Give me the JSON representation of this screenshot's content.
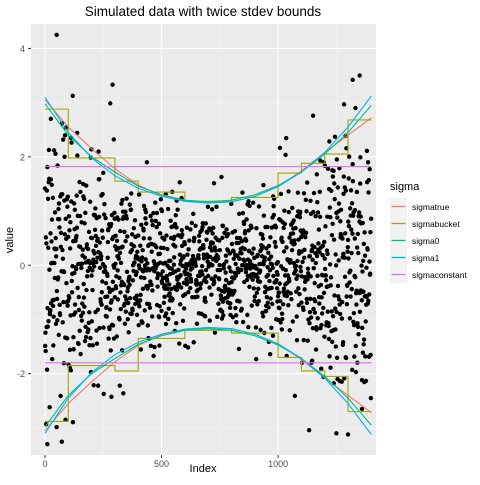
{
  "chart_data": {
    "type": "scatter",
    "title": "Simulated data with twice stdev bounds",
    "xlabel": "Index",
    "ylabel": "value",
    "xlim": [
      -60,
      1420
    ],
    "ylim": [
      -3.5,
      4.45
    ],
    "xticks": [
      0,
      500,
      1000
    ],
    "xtick_labels": [
      "0",
      "500",
      "1000"
    ],
    "yticks": [
      -2,
      0,
      2,
      4
    ],
    "ytick_labels": [
      "-2",
      "0",
      "2",
      "4"
    ],
    "grid": true,
    "legend_position": "right",
    "legend": {
      "title": "sigma",
      "entries": [
        "sigmatrue",
        "sigmabucket",
        "sigma0",
        "sigma1",
        "sigmaconstant"
      ]
    },
    "colors": {
      "panel_bg": "#EBEBEB",
      "grid_major": "#FFFFFF",
      "grid_minor": "#F5F5F5",
      "points": "#000000",
      "sigmatrue": "#F8766D",
      "sigmabucket": "#A3A500",
      "sigma0": "#00BF7D",
      "sigma1": "#00B0F6",
      "sigmaconstant": "#E76BF3"
    },
    "n_points": 1400,
    "series": [
      {
        "name": "sigmatrue",
        "type": "line",
        "x": [
          0,
          100,
          200,
          300,
          400,
          500,
          600,
          700,
          800,
          900,
          1000,
          1100,
          1200,
          1300,
          1400
        ],
        "upper": [
          3.05,
          2.55,
          2.15,
          1.78,
          1.48,
          1.28,
          1.18,
          1.15,
          1.17,
          1.27,
          1.45,
          1.74,
          2.08,
          2.4,
          2.72
        ],
        "lower": [
          -3.05,
          -2.55,
          -2.15,
          -1.78,
          -1.48,
          -1.28,
          -1.18,
          -1.15,
          -1.17,
          -1.27,
          -1.45,
          -1.74,
          -2.08,
          -2.4,
          -2.72
        ]
      },
      {
        "name": "sigmabucket",
        "type": "step",
        "x": [
          0,
          100,
          100,
          300,
          300,
          400,
          400,
          600,
          600,
          800,
          800,
          1000,
          1000,
          1100,
          1100,
          1200,
          1200,
          1300,
          1300,
          1400
        ],
        "upper": [
          2.88,
          2.88,
          1.98,
          1.98,
          1.55,
          1.55,
          1.35,
          1.35,
          1.18,
          1.18,
          1.25,
          1.25,
          1.7,
          1.7,
          1.88,
          1.88,
          2.05,
          2.05,
          2.68,
          2.68
        ],
        "lower": [
          -2.88,
          -2.88,
          -1.85,
          -1.85,
          -1.95,
          -1.95,
          -1.35,
          -1.35,
          -1.2,
          -1.2,
          -1.25,
          -1.25,
          -1.7,
          -1.7,
          -1.95,
          -1.95,
          -2.05,
          -2.05,
          -2.7,
          -2.7
        ]
      },
      {
        "name": "sigma0",
        "type": "line",
        "x": [
          0,
          100,
          200,
          300,
          400,
          500,
          600,
          700,
          800,
          900,
          1000,
          1100,
          1200,
          1300,
          1400
        ],
        "upper": [
          2.98,
          2.4,
          2.0,
          1.72,
          1.46,
          1.3,
          1.2,
          1.17,
          1.2,
          1.3,
          1.47,
          1.72,
          2.05,
          2.45,
          2.95
        ],
        "lower": [
          -2.98,
          -2.4,
          -2.0,
          -1.72,
          -1.46,
          -1.3,
          -1.2,
          -1.17,
          -1.2,
          -1.3,
          -1.47,
          -1.72,
          -2.05,
          -2.45,
          -2.95
        ]
      },
      {
        "name": "sigma1",
        "type": "line",
        "x": [
          0,
          100,
          200,
          300,
          400,
          500,
          600,
          700,
          800,
          900,
          1000,
          1100,
          1200,
          1300,
          1400
        ],
        "upper": [
          3.1,
          2.45,
          1.98,
          1.65,
          1.42,
          1.27,
          1.18,
          1.15,
          1.17,
          1.27,
          1.45,
          1.72,
          2.08,
          2.55,
          3.12
        ],
        "lower": [
          -3.1,
          -2.45,
          -1.98,
          -1.65,
          -1.42,
          -1.27,
          -1.18,
          -1.15,
          -1.17,
          -1.27,
          -1.45,
          -1.72,
          -2.08,
          -2.55,
          -3.12
        ]
      },
      {
        "name": "sigmaconstant",
        "type": "line",
        "x": [
          0,
          1400
        ],
        "upper": [
          1.82,
          1.82
        ],
        "lower": [
          -1.8,
          -1.8
        ]
      }
    ],
    "highlighted_points": [
      {
        "x": 50,
        "y": 4.25
      },
      {
        "x": 1350,
        "y": 3.5
      },
      {
        "x": 1320,
        "y": 3.42
      },
      {
        "x": 290,
        "y": 3.33
      },
      {
        "x": 10,
        "y": -3.3
      },
      {
        "x": 1250,
        "y": -3.1
      },
      {
        "x": 1300,
        "y": -3.12
      },
      {
        "x": 1360,
        "y": -2.65
      },
      {
        "x": 25,
        "y": 2.7
      }
    ]
  }
}
